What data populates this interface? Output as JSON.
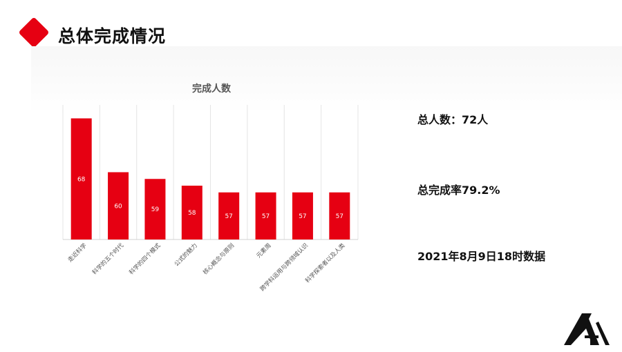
{
  "header": {
    "title": "总体完成情况"
  },
  "stats": {
    "total": "总人数：72人",
    "rate": "总完成率79.2%",
    "date": "2021年8月9日18时数据"
  },
  "colors": {
    "accent": "#e60012"
  },
  "chart_data": {
    "type": "bar",
    "title": "完成人数",
    "categories": [
      "走近科学",
      "科学的五个时代",
      "科学的四个模式",
      "公式的魅力",
      "核心概念与原则",
      "元素周",
      "跨学科运用与跨领域认识",
      "科学探索者以及人类"
    ],
    "values": [
      68,
      60,
      59,
      58,
      57,
      57,
      57,
      57
    ],
    "ylim": [
      50,
      70
    ],
    "grid": "vertical",
    "bar_color": "#e60012"
  }
}
